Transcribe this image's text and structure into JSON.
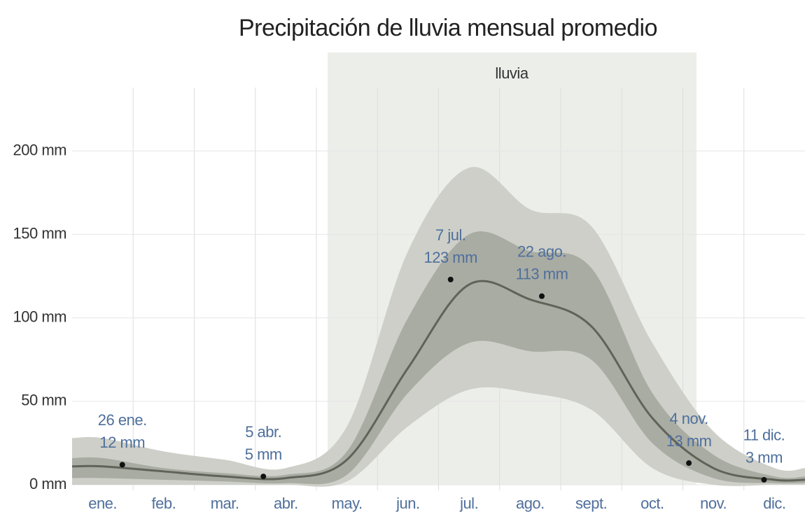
{
  "chart_data": {
    "type": "area",
    "title": "Precipitación de lluvia mensual promedio",
    "season_label": "lluvia",
    "categories": [
      "ene.",
      "feb.",
      "mar.",
      "abr.",
      "may.",
      "jun.",
      "jul.",
      "ago.",
      "sept.",
      "oct.",
      "nov.",
      "dic."
    ],
    "bands": [
      {
        "color": "#cdcfc8",
        "lower": [
          0,
          0,
          0,
          0,
          2,
          35,
          57,
          55,
          45,
          10,
          0,
          0
        ],
        "upper": [
          28,
          20,
          15,
          10,
          35,
          140,
          190,
          165,
          155,
          85,
          32,
          10
        ]
      },
      {
        "color": "#a9aca3",
        "lower": [
          4,
          3,
          2,
          1,
          6,
          55,
          85,
          80,
          75,
          25,
          4,
          1
        ],
        "upper": [
          16,
          10,
          7,
          6,
          20,
          100,
          150,
          140,
          130,
          55,
          18,
          5
        ]
      }
    ],
    "series": [
      {
        "color": "#5f6358",
        "values": [
          11,
          8,
          5,
          4,
          15,
          70,
          120,
          111,
          95,
          40,
          10,
          3
        ]
      }
    ],
    "annotations": [
      {
        "label": "26 ene.",
        "value": 12,
        "value_label": "12 mm"
      },
      {
        "label": "5 abr.",
        "value": 5,
        "value_label": "5 mm"
      },
      {
        "label": "7 jul.",
        "value": 123,
        "value_label": "123 mm"
      },
      {
        "label": "22 ago.",
        "value": 113,
        "value_label": "113 mm"
      },
      {
        "label": "4 nov.",
        "value": 13,
        "value_label": "13 mm"
      },
      {
        "label": "11 dic.",
        "value": 3,
        "value_label": "3 mm"
      }
    ],
    "ylim": [
      0,
      259
    ],
    "yticks": [
      {
        "value": 0,
        "label": "0 mm"
      },
      {
        "value": 50,
        "label": "50 mm"
      },
      {
        "value": 100,
        "label": "100 mm"
      },
      {
        "value": 150,
        "label": "150 mm"
      },
      {
        "value": 200,
        "label": "200 mm"
      }
    ],
    "grid": true
  }
}
